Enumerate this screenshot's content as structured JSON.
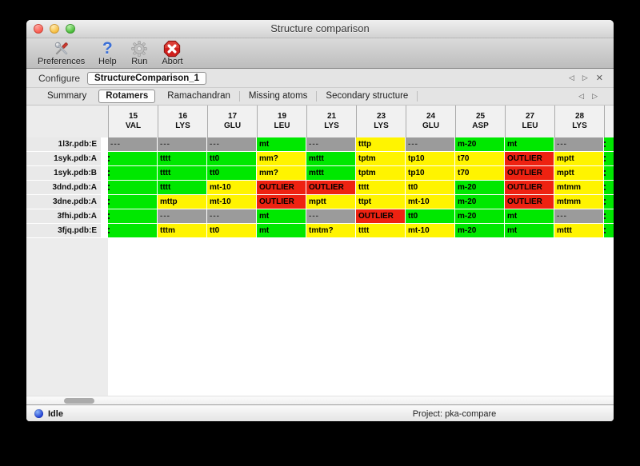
{
  "window": {
    "title": "Structure comparison"
  },
  "toolbar": {
    "items": [
      {
        "id": "preferences",
        "label": "Preferences",
        "icon": "tools-icon"
      },
      {
        "id": "help",
        "label": "Help",
        "icon": "question-mark-icon"
      },
      {
        "id": "run",
        "label": "Run",
        "icon": "gear-icon"
      },
      {
        "id": "abort",
        "label": "Abort",
        "icon": "stop-octagon-icon"
      }
    ],
    "help_glyph": "?"
  },
  "configure": {
    "label": "Configure",
    "value": "StructureComparison_1",
    "nav": {
      "prev": "◁",
      "next": "▷",
      "close": "✕"
    }
  },
  "tabs": {
    "items": [
      "Summary",
      "Rotamers",
      "Ramachandran",
      "Missing atoms",
      "Secondary structure"
    ],
    "selected": "Rotamers",
    "nav": {
      "prev": "◁",
      "next": "▷"
    }
  },
  "table": {
    "colors": {
      "green": "#00e800",
      "yellow": "#fff400",
      "red": "#ee2211",
      "gray": "#9b9b9b"
    },
    "columns": [
      {
        "num": "15",
        "res": "VAL"
      },
      {
        "num": "16",
        "res": "LYS"
      },
      {
        "num": "17",
        "res": "GLU"
      },
      {
        "num": "19",
        "res": "LEU"
      },
      {
        "num": "21",
        "res": "LYS"
      },
      {
        "num": "23",
        "res": "LYS"
      },
      {
        "num": "24",
        "res": "GLU"
      },
      {
        "num": "25",
        "res": "ASP"
      },
      {
        "num": "27",
        "res": "LEU"
      },
      {
        "num": "28",
        "res": "LYS"
      }
    ],
    "rows": [
      {
        "label": "1l3r.pdb:E",
        "partial": "green",
        "cells": [
          {
            "v": "---",
            "c": "gray"
          },
          {
            "v": "---",
            "c": "gray"
          },
          {
            "v": "---",
            "c": "gray"
          },
          {
            "v": "mt",
            "c": "green"
          },
          {
            "v": "---",
            "c": "gray"
          },
          {
            "v": "tttp",
            "c": "yellow"
          },
          {
            "v": "---",
            "c": "gray"
          },
          {
            "v": "m-20",
            "c": "green"
          },
          {
            "v": "mt",
            "c": "green"
          },
          {
            "v": "---",
            "c": "gray"
          }
        ]
      },
      {
        "label": "1syk.pdb:A",
        "partial": "green",
        "cells": [
          {
            "v": "",
            "c": "green",
            "clip": true
          },
          {
            "v": "tttt",
            "c": "green"
          },
          {
            "v": "tt0",
            "c": "green"
          },
          {
            "v": "mm?",
            "c": "yellow"
          },
          {
            "v": "mttt",
            "c": "green"
          },
          {
            "v": "tptm",
            "c": "yellow"
          },
          {
            "v": "tp10",
            "c": "yellow"
          },
          {
            "v": "t70",
            "c": "yellow"
          },
          {
            "v": "OUTLIER",
            "c": "red"
          },
          {
            "v": "mptt",
            "c": "yellow"
          }
        ]
      },
      {
        "label": "1syk.pdb:B",
        "partial": "green",
        "cells": [
          {
            "v": "",
            "c": "green",
            "clip": true
          },
          {
            "v": "tttt",
            "c": "green"
          },
          {
            "v": "tt0",
            "c": "green"
          },
          {
            "v": "mm?",
            "c": "yellow"
          },
          {
            "v": "mttt",
            "c": "green"
          },
          {
            "v": "tptm",
            "c": "yellow"
          },
          {
            "v": "tp10",
            "c": "yellow"
          },
          {
            "v": "t70",
            "c": "yellow"
          },
          {
            "v": "OUTLIER",
            "c": "red"
          },
          {
            "v": "mptt",
            "c": "yellow"
          }
        ]
      },
      {
        "label": "3dnd.pdb:A",
        "partial": "green",
        "cells": [
          {
            "v": "",
            "c": "green",
            "clip": true
          },
          {
            "v": "tttt",
            "c": "green"
          },
          {
            "v": "mt-10",
            "c": "yellow"
          },
          {
            "v": "OUTLIER",
            "c": "red"
          },
          {
            "v": "OUTLIER",
            "c": "red"
          },
          {
            "v": "tttt",
            "c": "yellow"
          },
          {
            "v": "tt0",
            "c": "yellow"
          },
          {
            "v": "m-20",
            "c": "green"
          },
          {
            "v": "OUTLIER",
            "c": "red"
          },
          {
            "v": "mtmm",
            "c": "yellow"
          }
        ]
      },
      {
        "label": "3dne.pdb:A",
        "partial": "green",
        "cells": [
          {
            "v": "",
            "c": "green",
            "clip": true
          },
          {
            "v": "mttp",
            "c": "yellow"
          },
          {
            "v": "mt-10",
            "c": "yellow"
          },
          {
            "v": "OUTLIER",
            "c": "red"
          },
          {
            "v": "mptt",
            "c": "yellow"
          },
          {
            "v": "ttpt",
            "c": "yellow"
          },
          {
            "v": "mt-10",
            "c": "yellow"
          },
          {
            "v": "m-20",
            "c": "green"
          },
          {
            "v": "OUTLIER",
            "c": "red"
          },
          {
            "v": "mtmm",
            "c": "yellow"
          }
        ]
      },
      {
        "label": "3fhi.pdb:A",
        "partial": "green",
        "cells": [
          {
            "v": "",
            "c": "green",
            "clip": true
          },
          {
            "v": "---",
            "c": "gray"
          },
          {
            "v": "---",
            "c": "gray"
          },
          {
            "v": "mt",
            "c": "green"
          },
          {
            "v": "---",
            "c": "gray"
          },
          {
            "v": "OUTLIER",
            "c": "red"
          },
          {
            "v": "tt0",
            "c": "green"
          },
          {
            "v": "m-20",
            "c": "green"
          },
          {
            "v": "mt",
            "c": "green"
          },
          {
            "v": "---",
            "c": "gray"
          }
        ]
      },
      {
        "label": "3fjq.pdb:E",
        "partial": "green",
        "cells": [
          {
            "v": "",
            "c": "green",
            "clip": true
          },
          {
            "v": "tttm",
            "c": "yellow"
          },
          {
            "v": "tt0",
            "c": "yellow"
          },
          {
            "v": "mt",
            "c": "green"
          },
          {
            "v": "tmtm?",
            "c": "yellow"
          },
          {
            "v": "tttt",
            "c": "yellow"
          },
          {
            "v": "mt-10",
            "c": "yellow"
          },
          {
            "v": "m-20",
            "c": "green"
          },
          {
            "v": "mt",
            "c": "green"
          },
          {
            "v": "mttt",
            "c": "yellow"
          }
        ]
      }
    ]
  },
  "statusbar": {
    "status": "Idle",
    "project": "Project: pka-compare"
  }
}
